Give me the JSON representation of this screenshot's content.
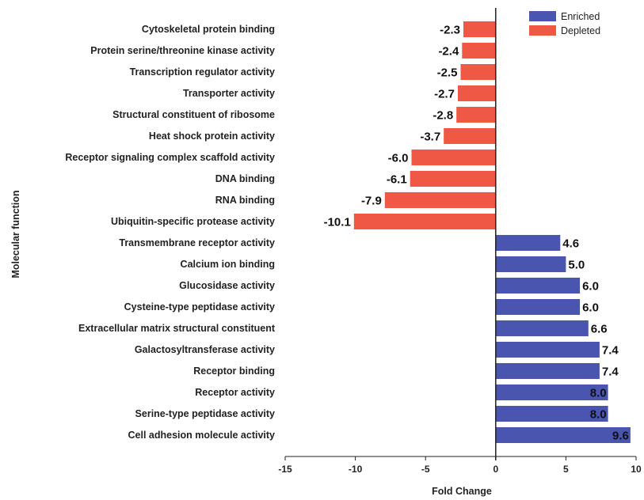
{
  "chart_data": {
    "type": "bar",
    "orientation": "horizontal",
    "xlabel": "Fold Change",
    "ylabel": "Molecular function",
    "xlim": [
      -15,
      10
    ],
    "xticks": [
      -15,
      -10,
      -5,
      0,
      5,
      10
    ],
    "grid": false,
    "legend_position": "top-right",
    "legend": [
      {
        "name": "Enriched",
        "color": "#4a55b0"
      },
      {
        "name": "Depleted",
        "color": "#ef5845"
      }
    ],
    "bars": [
      {
        "category": "Cytoskeletal protein binding",
        "value": -2.3,
        "label": "-2.3",
        "series": "Depleted"
      },
      {
        "category": "Protein serine/threonine kinase activity",
        "value": -2.4,
        "label": "-2.4",
        "series": "Depleted"
      },
      {
        "category": "Transcription regulator activity",
        "value": -2.5,
        "label": "-2.5",
        "series": "Depleted"
      },
      {
        "category": "Transporter activity",
        "value": -2.7,
        "label": "-2.7",
        "series": "Depleted"
      },
      {
        "category": "Structural constituent of ribosome",
        "value": -2.8,
        "label": "-2.8",
        "series": "Depleted"
      },
      {
        "category": "Heat shock protein activity",
        "value": -3.7,
        "label": "-3.7",
        "series": "Depleted"
      },
      {
        "category": "Receptor signaling complex scaffold activity",
        "value": -6.0,
        "label": "-6.0",
        "series": "Depleted"
      },
      {
        "category": "DNA binding",
        "value": -6.1,
        "label": "-6.1",
        "series": "Depleted"
      },
      {
        "category": "RNA binding",
        "value": -7.9,
        "label": "-7.9",
        "series": "Depleted"
      },
      {
        "category": "Ubiquitin-specific protease activity",
        "value": -10.1,
        "label": "-10.1",
        "series": "Depleted"
      },
      {
        "category": "Transmembrane receptor activity",
        "value": 4.6,
        "label": "4.6",
        "series": "Enriched"
      },
      {
        "category": "Calcium ion binding",
        "value": 5.0,
        "label": "5.0",
        "series": "Enriched"
      },
      {
        "category": "Glucosidase activity",
        "value": 6.0,
        "label": "6.0",
        "series": "Enriched"
      },
      {
        "category": "Cysteine-type peptidase activity",
        "value": 6.0,
        "label": "6.0",
        "series": "Enriched"
      },
      {
        "category": "Extracellular matrix structural constituent",
        "value": 6.6,
        "label": "6.6",
        "series": "Enriched"
      },
      {
        "category": "Galactosyltransferase activity",
        "value": 7.4,
        "label": "7.4",
        "series": "Enriched"
      },
      {
        "category": "Receptor binding",
        "value": 7.4,
        "label": "7.4",
        "series": "Enriched"
      },
      {
        "category": "Receptor activity",
        "value": 8.0,
        "label": "8.0",
        "series": "Enriched"
      },
      {
        "category": "Serine-type peptidase activity",
        "value": 8.0,
        "label": "8.0",
        "series": "Enriched"
      },
      {
        "category": "Cell adhesion molecule activity",
        "value": 9.6,
        "label": "9.6",
        "series": "Enriched"
      }
    ]
  }
}
